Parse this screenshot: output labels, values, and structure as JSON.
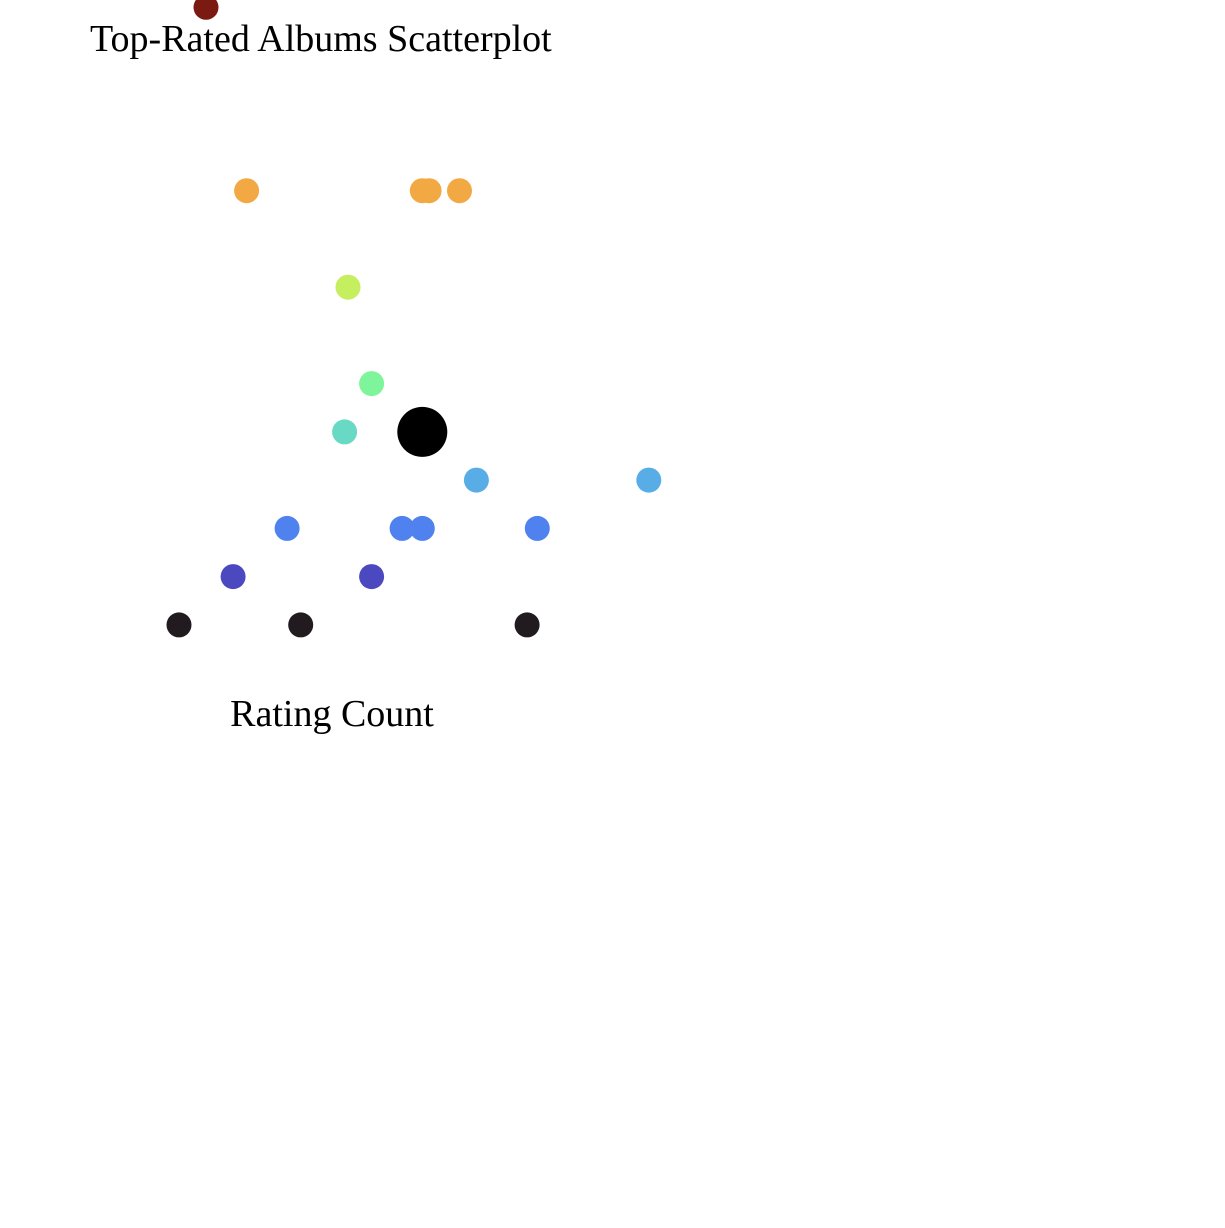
{
  "chart_data": {
    "type": "scatter",
    "title": "Top-Rated Albums Scatterplot",
    "xlabel": "Rating Count",
    "ylabel": "",
    "grid": false,
    "legend": "none",
    "points": [
      {
        "x": 1.45,
        "y": 0.2,
        "color": "#7a1a10",
        "size": "normal"
      },
      {
        "x": 2.05,
        "y": 2.1,
        "color": "#f2a944",
        "size": "normal"
      },
      {
        "x": 4.65,
        "y": 2.1,
        "color": "#f2a944",
        "size": "normal"
      },
      {
        "x": 4.75,
        "y": 2.1,
        "color": "#f2a944",
        "size": "normal"
      },
      {
        "x": 5.2,
        "y": 2.1,
        "color": "#f2a944",
        "size": "normal"
      },
      {
        "x": 3.55,
        "y": 3.1,
        "color": "#c6ef60",
        "size": "normal"
      },
      {
        "x": 3.9,
        "y": 4.1,
        "color": "#7ef59b",
        "size": "normal"
      },
      {
        "x": 3.5,
        "y": 4.6,
        "color": "#67d9c5",
        "size": "normal"
      },
      {
        "x": 4.65,
        "y": 4.6,
        "color": "#000000",
        "size": "large"
      },
      {
        "x": 5.45,
        "y": 5.1,
        "color": "#59ade6",
        "size": "normal"
      },
      {
        "x": 8.0,
        "y": 5.1,
        "color": "#59ade6",
        "size": "normal"
      },
      {
        "x": 2.65,
        "y": 5.6,
        "color": "#4f81ef",
        "size": "normal"
      },
      {
        "x": 4.35,
        "y": 5.6,
        "color": "#4f81ef",
        "size": "normal"
      },
      {
        "x": 4.65,
        "y": 5.6,
        "color": "#4f81ef",
        "size": "normal"
      },
      {
        "x": 6.35,
        "y": 5.6,
        "color": "#4f81ef",
        "size": "normal"
      },
      {
        "x": 1.85,
        "y": 6.1,
        "color": "#4b48c0",
        "size": "normal"
      },
      {
        "x": 3.9,
        "y": 6.1,
        "color": "#4b48c0",
        "size": "normal"
      },
      {
        "x": 1.05,
        "y": 6.6,
        "color": "#211a1e",
        "size": "normal"
      },
      {
        "x": 2.85,
        "y": 6.6,
        "color": "#211a1e",
        "size": "normal"
      },
      {
        "x": 6.2,
        "y": 6.6,
        "color": "#211a1e",
        "size": "normal"
      }
    ]
  }
}
